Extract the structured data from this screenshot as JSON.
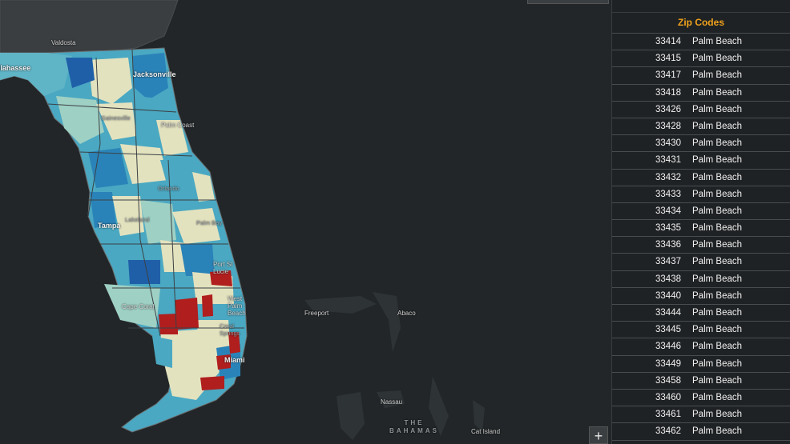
{
  "map": {
    "labels": {
      "valdosta": "Valdosta",
      "tallahassee": "Tallahassee",
      "jacksonville": "Jacksonville",
      "gainesville": "Gainesville",
      "palm_coast": "Palm Coast",
      "orlando": "Orlando",
      "lakeland": "Lakeland",
      "palm_bay": "Palm Bay",
      "tampa": "Tampa",
      "port_st_lucie": "Port St Lucie",
      "west_palm_beach": "West Palm Beach",
      "cape_coral": "Cape Coral",
      "coral_springs": "Coral Springs",
      "miami": "Miami",
      "freeport": "Freeport",
      "abaco": "Abaco",
      "nassau": "Nassau",
      "bahamas_line1": "THE",
      "bahamas_line2": "BAHAMAS",
      "cat_island": "Cat Island"
    },
    "zoom_in_label": "+",
    "colors": {
      "background": "#222628",
      "land": "#3a3e40",
      "low": "#e3e2bf",
      "mid_light": "#9fd0c4",
      "mid": "#4aa8c2",
      "high": "#2a83b8",
      "highest": "#1f5fa8",
      "alert": "#b01e1e"
    }
  },
  "panel": {
    "title": "Zip Codes",
    "accent": "#f0a21c",
    "rows": [
      {
        "zip": "33414",
        "city": "Palm Beach"
      },
      {
        "zip": "33415",
        "city": "Palm Beach"
      },
      {
        "zip": "33417",
        "city": "Palm Beach"
      },
      {
        "zip": "33418",
        "city": "Palm Beach"
      },
      {
        "zip": "33426",
        "city": "Palm Beach"
      },
      {
        "zip": "33428",
        "city": "Palm Beach"
      },
      {
        "zip": "33430",
        "city": "Palm Beach"
      },
      {
        "zip": "33431",
        "city": "Palm Beach"
      },
      {
        "zip": "33432",
        "city": "Palm Beach"
      },
      {
        "zip": "33433",
        "city": "Palm Beach"
      },
      {
        "zip": "33434",
        "city": "Palm Beach"
      },
      {
        "zip": "33435",
        "city": "Palm Beach"
      },
      {
        "zip": "33436",
        "city": "Palm Beach"
      },
      {
        "zip": "33437",
        "city": "Palm Beach"
      },
      {
        "zip": "33438",
        "city": "Palm Beach"
      },
      {
        "zip": "33440",
        "city": "Palm Beach"
      },
      {
        "zip": "33444",
        "city": "Palm Beach"
      },
      {
        "zip": "33445",
        "city": "Palm Beach"
      },
      {
        "zip": "33446",
        "city": "Palm Beach"
      },
      {
        "zip": "33449",
        "city": "Palm Beach"
      },
      {
        "zip": "33458",
        "city": "Palm Beach"
      },
      {
        "zip": "33460",
        "city": "Palm Beach"
      },
      {
        "zip": "33461",
        "city": "Palm Beach"
      },
      {
        "zip": "33462",
        "city": "Palm Beach"
      }
    ]
  }
}
